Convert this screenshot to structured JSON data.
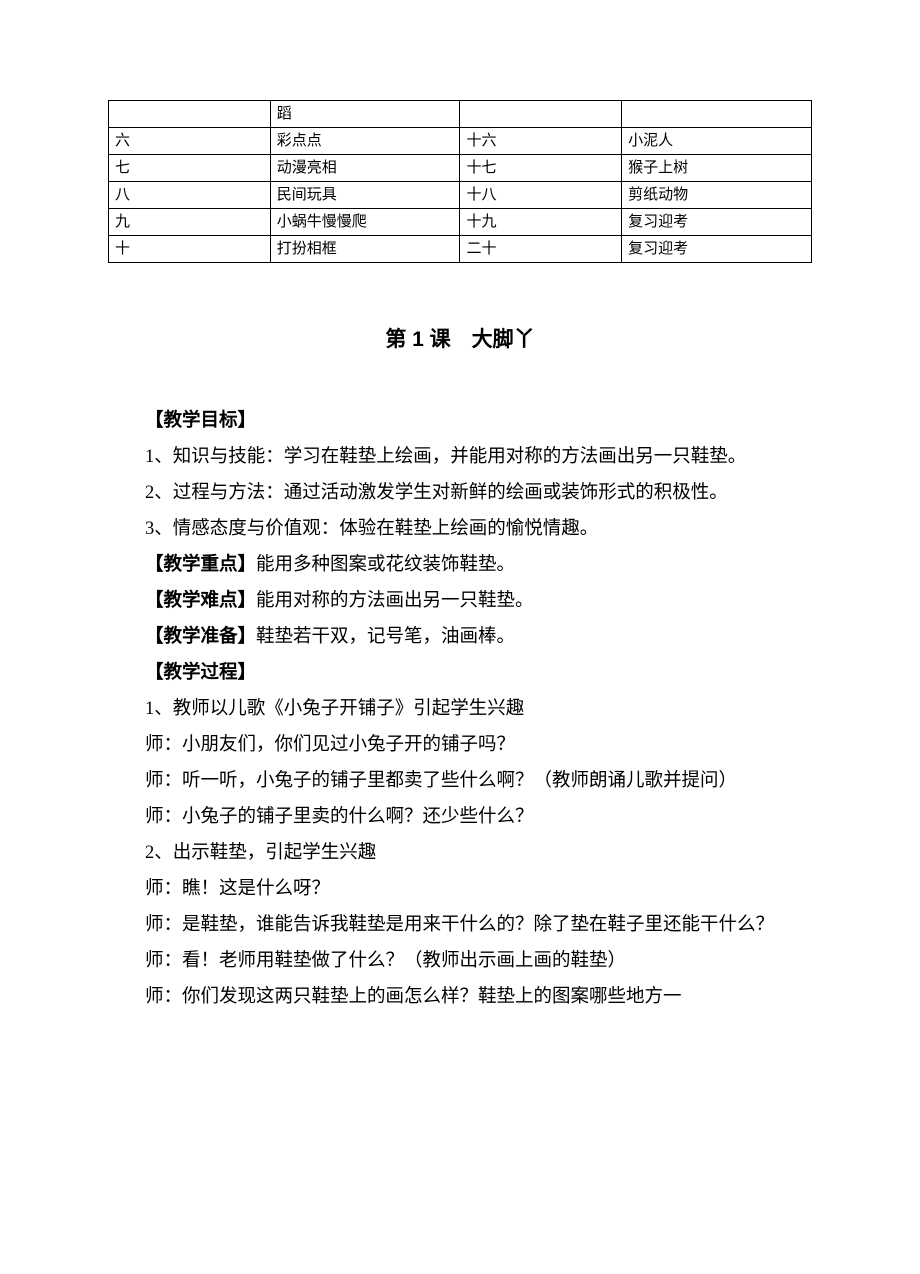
{
  "table": {
    "rows": [
      [
        "",
        "蹈",
        "",
        ""
      ],
      [
        "六",
        "彩点点",
        "十六",
        "小泥人"
      ],
      [
        "七",
        "动漫亮相",
        "十七",
        "猴子上树"
      ],
      [
        "八",
        "民间玩具",
        "十八",
        "剪纸动物"
      ],
      [
        "九",
        "小蜗牛慢慢爬",
        "十九",
        "复习迎考"
      ],
      [
        "十",
        "打扮相框",
        "二十",
        "复习迎考"
      ]
    ]
  },
  "lesson": {
    "title": "第 1 课　大脚丫",
    "sections": {
      "goal_label": "【教学目标】",
      "goal_1": "1、知识与技能：学习在鞋垫上绘画，并能用对称的方法画出另一只鞋垫。",
      "goal_2": "2、过程与方法：通过活动激发学生对新鲜的绘画或装饰形式的积极性。",
      "goal_3": "3、情感态度与价值观：体验在鞋垫上绘画的愉悦情趣。",
      "keypoint_label": "【教学重点】",
      "keypoint_text": "能用多种图案或花纹装饰鞋垫。",
      "difficulty_label": "【教学难点】",
      "difficulty_text": "能用对称的方法画出另一只鞋垫。",
      "prep_label": "【教学准备】",
      "prep_text": "鞋垫若干双，记号笔，油画棒。",
      "process_label": "【教学过程】",
      "p1": "1、教师以儿歌《小兔子开铺子》引起学生兴趣",
      "p2": "师：小朋友们，你们见过小兔子开的铺子吗？",
      "p3": "师：听一听，小兔子的铺子里都卖了些什么啊？（教师朗诵儿歌并提问）",
      "p4": "师：小兔子的铺子里卖的什么啊？还少些什么？",
      "p5": "2、出示鞋垫，引起学生兴趣",
      "p6": "师：瞧！这是什么呀？",
      "p7": "师：是鞋垫，谁能告诉我鞋垫是用来干什么的？除了垫在鞋子里还能干什么？",
      "p8": "师：看！老师用鞋垫做了什么？（教师出示画上画的鞋垫）",
      "p9": "师：你们发现这两只鞋垫上的画怎么样？鞋垫上的图案哪些地方一"
    }
  }
}
